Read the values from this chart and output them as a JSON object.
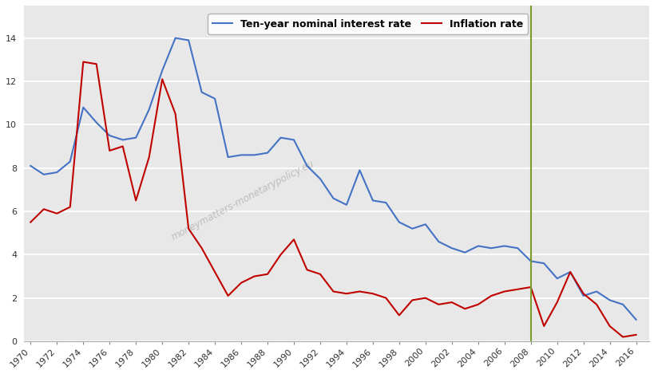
{
  "ten_year_rate": {
    "years": [
      1970,
      1971,
      1972,
      1973,
      1974,
      1975,
      1976,
      1977,
      1978,
      1979,
      1980,
      1981,
      1982,
      1983,
      1984,
      1985,
      1986,
      1987,
      1988,
      1989,
      1990,
      1991,
      1992,
      1993,
      1994,
      1995,
      1996,
      1997,
      1998,
      1999,
      2000,
      2001,
      2002,
      2003,
      2004,
      2005,
      2006,
      2007,
      2008,
      2009,
      2010,
      2011,
      2012,
      2013,
      2014,
      2015,
      2016
    ],
    "values": [
      8.1,
      7.7,
      7.8,
      8.3,
      10.8,
      10.1,
      9.5,
      9.3,
      9.4,
      10.7,
      12.5,
      14.0,
      13.9,
      11.5,
      11.2,
      8.5,
      8.6,
      8.6,
      8.7,
      9.4,
      9.3,
      8.1,
      7.5,
      6.6,
      6.3,
      7.9,
      6.5,
      6.4,
      5.5,
      5.2,
      5.4,
      4.6,
      4.3,
      4.1,
      4.4,
      4.3,
      4.4,
      4.3,
      3.7,
      3.6,
      2.9,
      3.2,
      2.1,
      2.3,
      1.9,
      1.7,
      1.0
    ],
    "color": "#4472C4",
    "linewidth": 1.5,
    "label": "Ten-year nominal interest rate"
  },
  "inflation_rate": {
    "years": [
      1970,
      1971,
      1972,
      1973,
      1974,
      1975,
      1976,
      1977,
      1978,
      1979,
      1980,
      1981,
      1982,
      1983,
      1984,
      1985,
      1986,
      1987,
      1988,
      1989,
      1990,
      1991,
      1992,
      1993,
      1994,
      1995,
      1996,
      1997,
      1998,
      1999,
      2000,
      2001,
      2002,
      2003,
      2004,
      2005,
      2006,
      2007,
      2008,
      2009,
      2010,
      2011,
      2012,
      2013,
      2014,
      2015,
      2016
    ],
    "values": [
      5.5,
      6.1,
      5.9,
      6.2,
      12.9,
      12.8,
      8.8,
      9.0,
      6.5,
      8.5,
      12.1,
      10.5,
      5.2,
      4.3,
      3.2,
      2.1,
      2.7,
      3.0,
      3.1,
      4.0,
      4.7,
      3.3,
      3.1,
      2.3,
      2.2,
      2.3,
      2.2,
      2.0,
      1.2,
      1.9,
      2.0,
      1.7,
      1.8,
      1.5,
      1.7,
      2.1,
      2.3,
      2.4,
      2.5,
      0.7,
      1.8,
      3.2,
      2.2,
      1.7,
      0.7,
      0.2,
      0.3
    ],
    "color": "#C00000",
    "linewidth": 1.5,
    "label": "Inflation rate"
  },
  "vline_year": 2008,
  "vline_color": "#7B9E2B",
  "ylim": [
    0,
    15.5
  ],
  "yticks": [
    0,
    2,
    4,
    6,
    8,
    10,
    12,
    14
  ],
  "xticks": [
    1970,
    1972,
    1974,
    1976,
    1978,
    1980,
    1982,
    1984,
    1986,
    1988,
    1990,
    1992,
    1994,
    1996,
    1998,
    2000,
    2002,
    2004,
    2006,
    2008,
    2010,
    2012,
    2014,
    2016
  ],
  "watermark": "moneymatters-monetarypolicy.eu",
  "background_color": "#ffffff",
  "plot_bg_color": "#e8e8e8",
  "grid_color": "#ffffff",
  "legend_fontsize": 9,
  "tick_fontsize": 8,
  "fig_width": 8.2,
  "fig_height": 4.69,
  "xlim_left": 1969.5,
  "xlim_right": 2017.0
}
